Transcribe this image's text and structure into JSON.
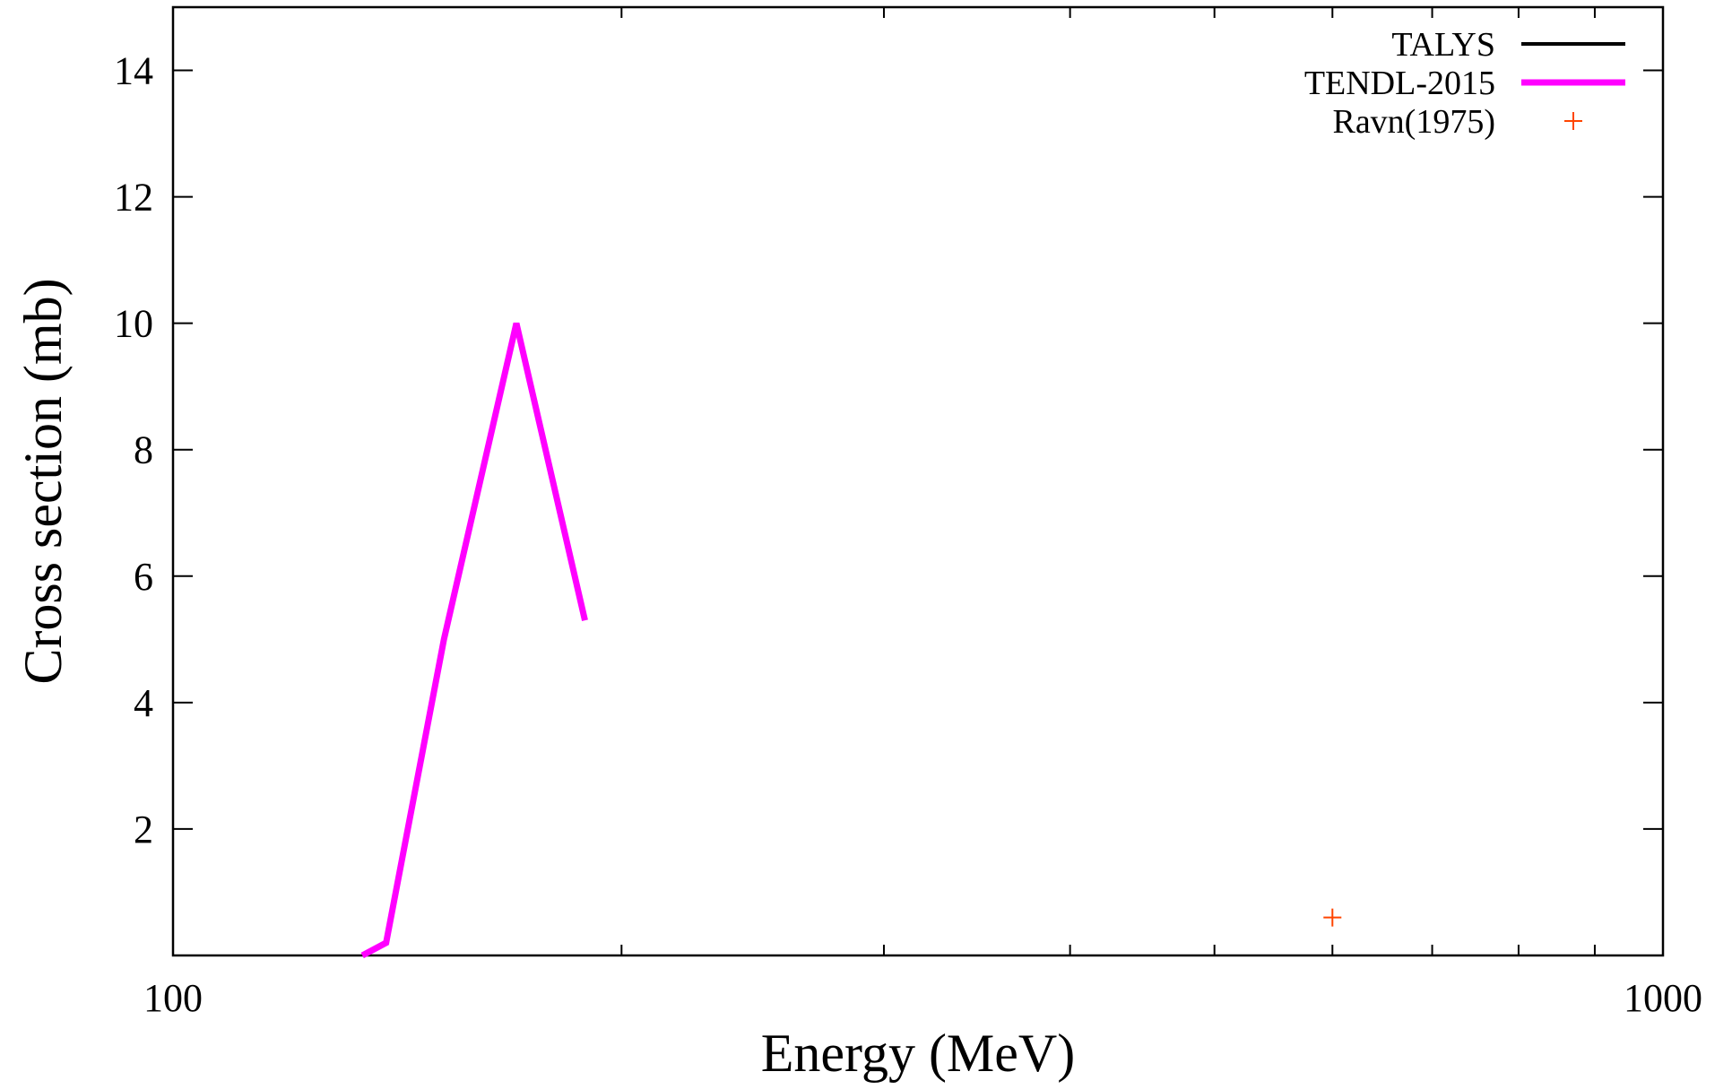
{
  "chart_data": {
    "type": "line",
    "xlabel": "Energy (MeV)",
    "ylabel": "Cross section (mb)",
    "xscale": "log",
    "xlim": [
      100,
      1000
    ],
    "ylim": [
      0,
      15
    ],
    "x_ticks": [
      100,
      1000
    ],
    "x_tick_labels": [
      "100",
      "1000"
    ],
    "y_ticks": [
      2,
      4,
      6,
      8,
      10,
      12,
      14
    ],
    "y_tick_labels": [
      "2",
      "4",
      "6",
      "8",
      "10",
      "12",
      "14"
    ],
    "grid": false,
    "legend_position": "top-right",
    "series": [
      {
        "name": "TALYS",
        "style": "line",
        "color": "#000000",
        "x": [],
        "y": []
      },
      {
        "name": "TENDL-2015",
        "style": "line",
        "color": "#ff00ff",
        "x": [
          134,
          139,
          152,
          170,
          189
        ],
        "y": [
          0.0,
          0.2,
          5.0,
          10.0,
          5.3
        ]
      },
      {
        "name": "Ravn(1975)",
        "style": "points",
        "marker": "plus",
        "color": "#ff4500",
        "x": [
          600
        ],
        "y": [
          0.6
        ]
      }
    ]
  }
}
